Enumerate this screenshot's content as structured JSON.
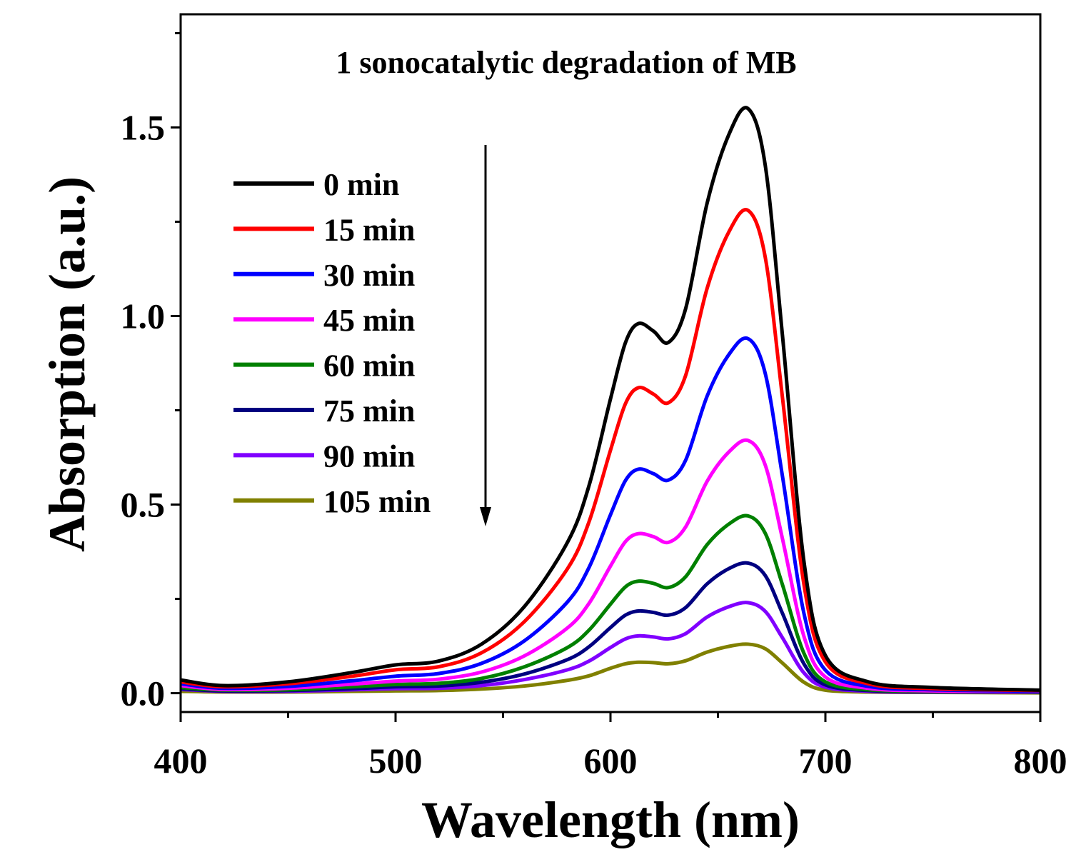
{
  "chart_data": {
    "type": "line",
    "title": "",
    "annotation": "1 sonocatalytic degradation of MB",
    "xlabel": "Wavelength (nm)",
    "ylabel": "Absorption (a.u.)",
    "xlim": [
      400,
      800
    ],
    "ylim": [
      -0.05,
      1.8
    ],
    "xticks": [
      400,
      500,
      600,
      700,
      800
    ],
    "xtick_labels": [
      "400",
      "500",
      "600",
      "700",
      "800"
    ],
    "yticks": [
      0.0,
      0.5,
      1.0,
      1.5
    ],
    "ytick_labels": [
      "0.0",
      "0.5",
      "1.0",
      "1.5"
    ],
    "grid": false,
    "legend_position": "upper-left",
    "arrow_direction": "down",
    "x": [
      400,
      420,
      450,
      480,
      500,
      520,
      540,
      560,
      580,
      590,
      600,
      607,
      613,
      620,
      627,
      635,
      645,
      655,
      664,
      672,
      680,
      690,
      700,
      720,
      750,
      800
    ],
    "series": [
      {
        "name": "0 min",
        "color": "#000000",
        "values": [
          0.035,
          0.02,
          0.03,
          0.055,
          0.075,
          0.085,
          0.13,
          0.23,
          0.4,
          0.55,
          0.78,
          0.93,
          0.98,
          0.96,
          0.93,
          1.02,
          1.3,
          1.48,
          1.55,
          1.4,
          0.95,
          0.35,
          0.1,
          0.03,
          0.015,
          0.008
        ]
      },
      {
        "name": "15 min",
        "color": "#ff0000",
        "values": [
          0.03,
          0.017,
          0.025,
          0.045,
          0.062,
          0.07,
          0.107,
          0.19,
          0.33,
          0.454,
          0.644,
          0.768,
          0.81,
          0.793,
          0.77,
          0.843,
          1.074,
          1.222,
          1.28,
          1.156,
          0.785,
          0.289,
          0.083,
          0.025,
          0.012,
          0.007
        ]
      },
      {
        "name": "30 min",
        "color": "#0000ff",
        "values": [
          0.025,
          0.013,
          0.018,
          0.033,
          0.045,
          0.052,
          0.079,
          0.139,
          0.242,
          0.333,
          0.473,
          0.564,
          0.594,
          0.582,
          0.565,
          0.618,
          0.788,
          0.897,
          0.94,
          0.848,
          0.576,
          0.212,
          0.061,
          0.018,
          0.009,
          0.005
        ]
      },
      {
        "name": "45 min",
        "color": "#ff00ff",
        "values": [
          0.02,
          0.01,
          0.013,
          0.024,
          0.032,
          0.037,
          0.056,
          0.099,
          0.173,
          0.238,
          0.337,
          0.402,
          0.423,
          0.415,
          0.4,
          0.441,
          0.562,
          0.639,
          0.67,
          0.605,
          0.41,
          0.151,
          0.043,
          0.013,
          0.006,
          0.004
        ]
      },
      {
        "name": "60 min",
        "color": "#008000",
        "values": [
          0.015,
          0.008,
          0.009,
          0.017,
          0.023,
          0.026,
          0.039,
          0.07,
          0.121,
          0.167,
          0.236,
          0.282,
          0.297,
          0.291,
          0.28,
          0.309,
          0.394,
          0.448,
          0.47,
          0.424,
          0.288,
          0.106,
          0.03,
          0.009,
          0.005,
          0.003
        ]
      },
      {
        "name": "75 min",
        "color": "#000080",
        "values": [
          0.012,
          0.006,
          0.007,
          0.012,
          0.017,
          0.019,
          0.029,
          0.051,
          0.089,
          0.123,
          0.174,
          0.207,
          0.218,
          0.214,
          0.207,
          0.227,
          0.29,
          0.33,
          0.345,
          0.312,
          0.212,
          0.078,
          0.022,
          0.007,
          0.004,
          0.002
        ]
      },
      {
        "name": "90 min",
        "color": "#8000ff",
        "values": [
          0.01,
          0.005,
          0.005,
          0.009,
          0.012,
          0.013,
          0.02,
          0.036,
          0.062,
          0.085,
          0.121,
          0.144,
          0.152,
          0.149,
          0.144,
          0.158,
          0.202,
          0.229,
          0.24,
          0.217,
          0.147,
          0.054,
          0.016,
          0.005,
          0.003,
          0.002
        ]
      },
      {
        "name": "105 min",
        "color": "#808000",
        "values": [
          0.005,
          0.003,
          0.003,
          0.005,
          0.006,
          0.007,
          0.011,
          0.019,
          0.034,
          0.046,
          0.066,
          0.078,
          0.082,
          0.081,
          0.078,
          0.086,
          0.109,
          0.124,
          0.13,
          0.118,
          0.08,
          0.029,
          0.008,
          0.003,
          0.002,
          0.001
        ]
      }
    ]
  }
}
